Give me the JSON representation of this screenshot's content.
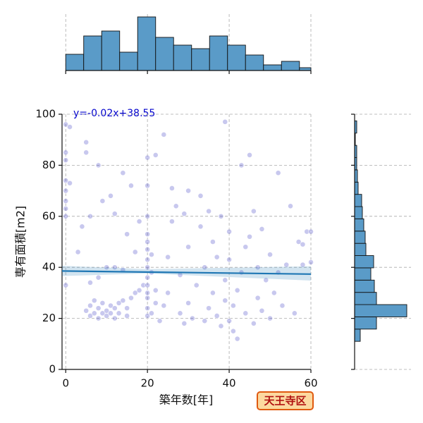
{
  "chart_data": [
    {
      "type": "scatter",
      "annotation": "y=-0.02x+38.55",
      "xlabel": "築年数[年]",
      "ylabel": "専有面積[m2]",
      "badge": "天王寺区",
      "color": "#2222bb",
      "line_color": "#1f77b4",
      "xlim": [
        -0.9,
        60
      ],
      "ylim": [
        0,
        100
      ],
      "xticks": [
        0,
        20,
        40,
        60
      ],
      "yticks": [
        0,
        20,
        40,
        60,
        80,
        100
      ],
      "grid": true,
      "regression": {
        "slope": -0.02,
        "intercept": 38.55,
        "band_x": [
          -0.9,
          20,
          60
        ],
        "band_lower": [
          36.6,
          37.6,
          34.8
        ],
        "band_upper": [
          40.6,
          39.3,
          40.4
        ]
      },
      "x": [
        0,
        0,
        0,
        0,
        0,
        0,
        0,
        0,
        0,
        1,
        1,
        5,
        6,
        6,
        7,
        7,
        8,
        8,
        9,
        9,
        10,
        10,
        11,
        11,
        12,
        12,
        13,
        13,
        14,
        15,
        15,
        16,
        17,
        18,
        19,
        6,
        8,
        10,
        12,
        14,
        5,
        5,
        8,
        9,
        11,
        12,
        14,
        15,
        17,
        18,
        3,
        4,
        6,
        16,
        20,
        20,
        20,
        20,
        20,
        20,
        20,
        20,
        20,
        20,
        20,
        20,
        20,
        20,
        21,
        21,
        22,
        22,
        22,
        21,
        23,
        24,
        25,
        25,
        26,
        27,
        28,
        28,
        29,
        29,
        30,
        30,
        30,
        31,
        32,
        33,
        33,
        34,
        34,
        35,
        35,
        24,
        26,
        36,
        36,
        37,
        37,
        38,
        38,
        39,
        39,
        39,
        40,
        40,
        40,
        41,
        41,
        42,
        42,
        43,
        43,
        44,
        44,
        45,
        46,
        46,
        47,
        47,
        48,
        48,
        49,
        50,
        50,
        51,
        52,
        53,
        54,
        55,
        56,
        57,
        58,
        58,
        59,
        60,
        60,
        45,
        52
      ],
      "y": [
        96,
        85,
        82,
        74,
        70,
        66,
        63,
        60,
        33,
        73,
        95,
        23,
        21,
        25,
        22,
        27,
        20,
        24,
        22,
        26,
        21,
        23,
        25,
        22,
        20,
        24,
        26,
        22,
        27,
        24,
        21,
        28,
        30,
        31,
        33,
        34,
        36,
        40,
        40,
        39,
        89,
        85,
        80,
        66,
        68,
        61,
        77,
        53,
        46,
        58,
        46,
        56,
        60,
        72,
        21,
        24,
        28,
        30,
        33,
        36,
        40,
        43,
        47,
        50,
        53,
        60,
        72,
        83,
        38,
        45,
        26,
        31,
        84,
        22,
        19,
        25,
        30,
        44,
        58,
        64,
        22,
        37,
        61,
        18,
        26,
        48,
        70,
        20,
        33,
        56,
        68,
        19,
        40,
        24,
        62,
        92,
        71,
        30,
        50,
        44,
        21,
        17,
        60,
        35,
        97,
        27,
        19,
        43,
        54,
        15,
        25,
        31,
        12,
        38,
        80,
        22,
        48,
        52,
        18,
        62,
        28,
        40,
        23,
        55,
        35,
        20,
        45,
        30,
        38,
        25,
        41,
        64,
        22,
        50,
        49,
        41,
        54,
        54,
        42,
        84,
        77
      ]
    },
    {
      "type": "histogram",
      "orientation": "vertical",
      "color": "#5a9bc8",
      "bins": [
        0,
        4.4,
        8.8,
        13.2,
        17.6,
        22,
        26.4,
        30.8,
        35.2,
        39.6,
        44,
        48.4,
        52.8,
        57.2,
        60
      ],
      "counts": [
        23,
        49,
        56,
        26,
        76,
        47,
        36,
        31,
        49,
        36,
        22,
        8,
        13,
        4
      ],
      "xlim": [
        -0.9,
        60
      ],
      "ylim": [
        0,
        80
      ],
      "xticks": [
        0,
        20,
        40,
        60
      ],
      "grid": true
    },
    {
      "type": "histogram",
      "orientation": "horizontal",
      "color": "#5a9bc8",
      "bins": [
        11,
        15.8,
        20.6,
        25.4,
        30.2,
        35,
        39.8,
        44.6,
        49.4,
        54.2,
        59,
        63.8,
        68.6,
        73.4,
        78.2,
        83,
        87.8,
        92.6,
        97.4
      ],
      "counts": [
        8,
        31,
        74,
        31,
        28,
        23,
        27,
        16,
        15,
        13,
        11,
        10,
        5,
        4,
        3,
        3,
        1,
        3
      ],
      "ylim": [
        0,
        100
      ],
      "xlim": [
        0,
        80
      ],
      "yticks": [
        0,
        20,
        40,
        60,
        80,
        100
      ],
      "grid": true
    }
  ]
}
